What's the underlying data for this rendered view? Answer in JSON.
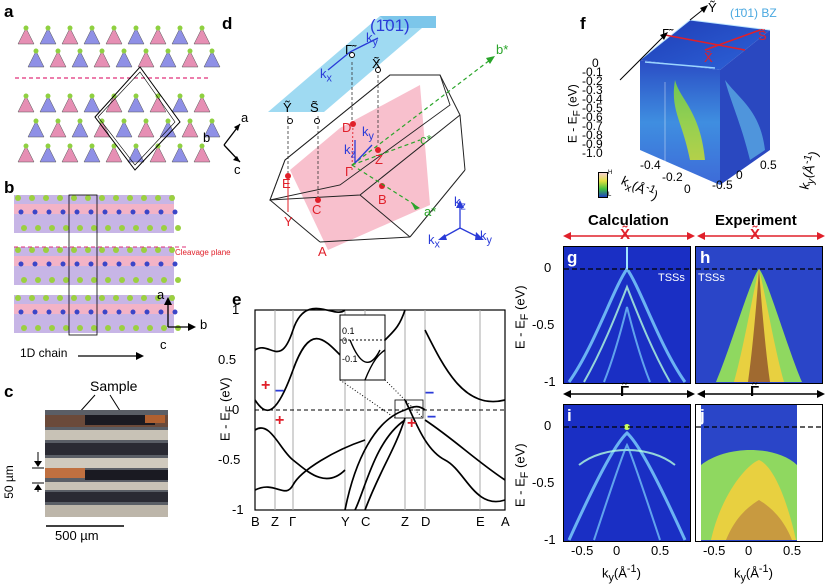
{
  "panels": {
    "a": {
      "label": "a",
      "axes": {
        "a": "a",
        "b": "b",
        "c": "c"
      }
    },
    "b": {
      "label": "b",
      "cleavage": "Cleavage plane",
      "chain": "1D chain",
      "axes": {
        "a": "a",
        "b": "b",
        "c": "c"
      }
    },
    "c": {
      "label": "c",
      "sample": "Sample",
      "scale_short": "50 µm",
      "scale_long": "500 µm"
    },
    "d": {
      "label": "d",
      "plane": "(1̄01)",
      "kx": "k",
      "kx_sub": "x",
      "ky": "k",
      "ky_sub": "y",
      "kz": "k",
      "kz_sub": "z",
      "Y_surf": "Ỹ",
      "S_surf": "S̃",
      "G_surf": "Γ̃",
      "X_surf": "X̃",
      "points": {
        "D": "D",
        "Z": "Z",
        "Gamma": "Γ",
        "E": "E",
        "C": "C",
        "B": "B",
        "Y": "Y",
        "A": "A"
      },
      "bstar": "b*",
      "cstar": "c*",
      "astar": "a*"
    },
    "e": {
      "label": "e",
      "ylabel": "E - E",
      "ylabel_sub": "F",
      "ylabel_unit": " (eV)",
      "yticks": [
        "1",
        "0.5",
        "0",
        "-0.5",
        "-1"
      ],
      "xticks": [
        "B",
        "Z",
        "Γ",
        "Y",
        "C",
        "Z",
        "D",
        "E",
        "A"
      ],
      "inset_ticks": [
        "0.1",
        "0",
        "-0.1"
      ],
      "plus": "+",
      "minus": "−"
    },
    "f": {
      "label": "f",
      "bz": "(1̄01) BZ",
      "Y": "Ỹ",
      "G": "Γ̃",
      "S": "S̃",
      "X": "X̃",
      "zticks": [
        "0",
        "-0.1",
        "-0.2",
        "-0.3",
        "-0.4",
        "-0.5",
        "-0.6",
        "-0.7",
        "-0.8",
        "-0.9",
        "-1.0"
      ],
      "ylabel": "E - E",
      "ylabel_sub": "F",
      "ylabel_unit": " (eV)",
      "kx_label": "k",
      "kx_sub": "x",
      "kx_unit": "(Å",
      "kx_exp": "-1",
      "kx_close": ")",
      "ky_label": "k",
      "ky_sub": "y",
      "ky_unit": "(Å",
      "ky_exp": "-1",
      "ky_close": ")",
      "kx_ticks": [
        "-0.4",
        "-0.2",
        "0"
      ],
      "ky_ticks": [
        "0.5",
        "0",
        "-0.5"
      ],
      "cb_high": "H",
      "cb_low": "L"
    },
    "g": {
      "label": "g",
      "title": "Calculation",
      "kpoint": "X̃",
      "tss": "TSSs"
    },
    "h": {
      "label": "h",
      "title": "Experiment",
      "kpoint": "X̃",
      "tss": "TSSs"
    },
    "i": {
      "label": "i",
      "kpoint": "Γ̃"
    },
    "j": {
      "label": "j",
      "kpoint": "Γ̃"
    },
    "ghij_axes": {
      "yticks": [
        "0",
        "-0.5",
        "-1"
      ],
      "xticks": [
        "-0.5",
        "0",
        "0.5"
      ],
      "ylabel": "E - E",
      "ylabel_sub": "F",
      "ylabel_unit": " (eV)",
      "xlabel": "k",
      "xlabel_sub": "y",
      "xlabel_unit": "(Å",
      "xlabel_exp": "-1",
      "xlabel_close": ")"
    }
  }
}
